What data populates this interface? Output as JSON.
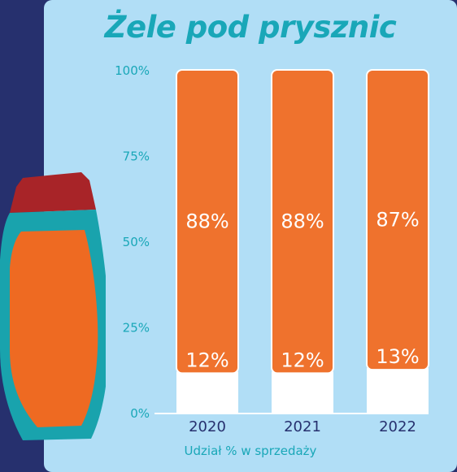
{
  "chart_data": {
    "type": "bar",
    "stacked": true,
    "title": "Żele pod prysznic",
    "xlabel": "Udział % w sprzedaży",
    "ylabel": "",
    "ylim": [
      0,
      100
    ],
    "y_ticks": [
      "0%",
      "25%",
      "50%",
      "75%",
      "100%"
    ],
    "categories": [
      "2020",
      "2021",
      "2022"
    ],
    "series": [
      {
        "values": [
          12,
          12,
          13
        ],
        "labels": [
          "12%",
          "12%",
          "13%"
        ],
        "color": "#ffffff"
      },
      {
        "values": [
          88,
          88,
          87
        ],
        "labels": [
          "88%",
          "88%",
          "87%"
        ],
        "color": "#ef722d"
      }
    ],
    "grid": false,
    "legend": "none"
  },
  "colors": {
    "background": "#26306e",
    "panel": "#b1def6",
    "accent": "#19a7b8",
    "bar_top": "#ef722d",
    "bar_bottom": "#ffffff"
  },
  "decoration": {
    "icon": "shower-gel-bottle-icon"
  }
}
